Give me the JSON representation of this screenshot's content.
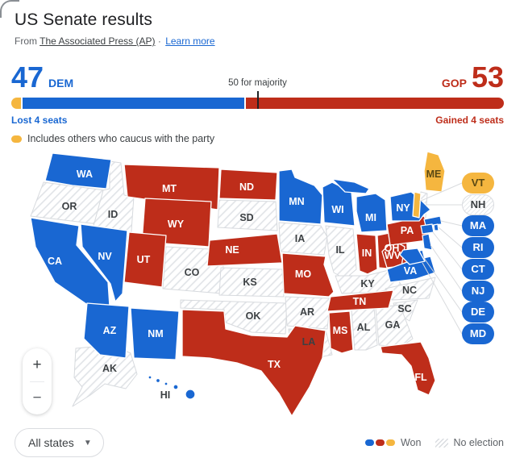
{
  "title": "US Senate results",
  "source": {
    "prefix": "From",
    "ap_link": "The Associated Press (AP)",
    "separator": "·",
    "learn_more": "Learn more"
  },
  "colors": {
    "dem": "#1967D2",
    "gop": "#BE2D1A",
    "ind": "#F5B63F",
    "link": "#1967D2",
    "title": "#202124",
    "muted": "#5F6368",
    "hatch_line": "#E0E3E7",
    "label_dark": "#3C4043"
  },
  "seatbar": {
    "dem_seats": "47",
    "dem_label": "DEM",
    "gop_label": "GOP",
    "gop_seats": "53",
    "majority_label": "50 for majority",
    "dem_change": "Lost 4 seats",
    "gop_change": "Gained 4 seats",
    "caucus_note": "Includes others who caucus with the party",
    "ind_pct": 2,
    "dem_pct": 45,
    "gop_pct": 53,
    "majority_pct": 50
  },
  "map": {
    "states": {
      "WA": {
        "party": "dem"
      },
      "OR": {
        "party": "none"
      },
      "CA": {
        "party": "dem"
      },
      "NV": {
        "party": "dem"
      },
      "ID": {
        "party": "none"
      },
      "MT": {
        "party": "gop"
      },
      "WY": {
        "party": "gop"
      },
      "UT": {
        "party": "gop"
      },
      "CO": {
        "party": "none"
      },
      "AZ": {
        "party": "dem"
      },
      "NM": {
        "party": "dem"
      },
      "ND": {
        "party": "gop"
      },
      "SD": {
        "party": "none"
      },
      "NE": {
        "party": "gop"
      },
      "KS": {
        "party": "none"
      },
      "OK": {
        "party": "none"
      },
      "TX": {
        "party": "gop"
      },
      "MN": {
        "party": "dem"
      },
      "IA": {
        "party": "none"
      },
      "MO": {
        "party": "gop"
      },
      "AR": {
        "party": "none"
      },
      "LA": {
        "party": "none"
      },
      "WI": {
        "party": "dem"
      },
      "IL": {
        "party": "none"
      },
      "MI": {
        "party": "dem"
      },
      "IN": {
        "party": "gop"
      },
      "OH": {
        "party": "gop"
      },
      "KY": {
        "party": "none"
      },
      "TN": {
        "party": "gop"
      },
      "MS": {
        "party": "gop"
      },
      "AL": {
        "party": "none"
      },
      "GA": {
        "party": "none"
      },
      "FL": {
        "party": "gop"
      },
      "SC": {
        "party": "none"
      },
      "NC": {
        "party": "none"
      },
      "VA": {
        "party": "dem"
      },
      "WV": {
        "party": "gop"
      },
      "PA": {
        "party": "gop"
      },
      "NY": {
        "party": "dem"
      },
      "ME": {
        "party": "ind"
      },
      "VT": {
        "party": "ind"
      },
      "NH": {
        "party": "none"
      },
      "MA": {
        "party": "dem"
      },
      "RI": {
        "party": "dem"
      },
      "CT": {
        "party": "dem"
      },
      "NJ": {
        "party": "dem"
      },
      "DE": {
        "party": "dem"
      },
      "MD": {
        "party": "dem"
      },
      "AK": {
        "party": "none"
      },
      "HI": {
        "party": "dem"
      }
    },
    "pills": [
      "VT",
      "NH",
      "MA",
      "RI",
      "CT",
      "NJ",
      "DE",
      "MD"
    ]
  },
  "controls": {
    "zoom_in": "+",
    "zoom_out": "−",
    "dropdown_label": "All states",
    "chevron": "▼"
  },
  "legend": {
    "won": "Won",
    "no_election": "No election"
  }
}
